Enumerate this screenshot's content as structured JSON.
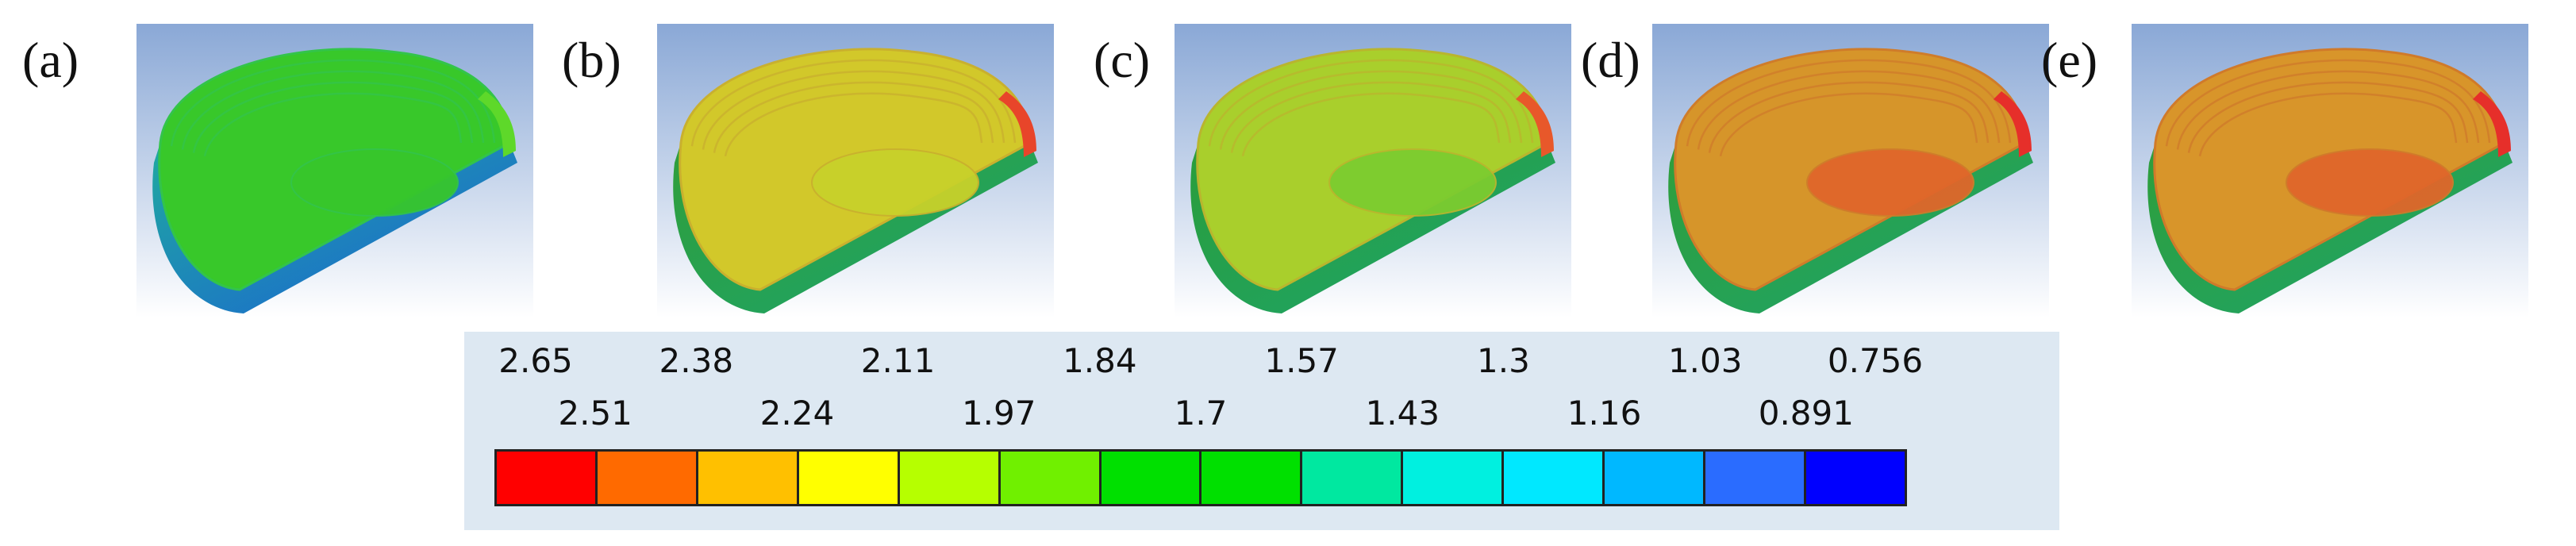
{
  "panels": [
    {
      "label": "(a)",
      "colors": {
        "top": "#38c82a",
        "rim": "#33c44a",
        "wall": "#1fa9a0",
        "wall_edge": "#1b5fd6",
        "center": "#37c62c",
        "edge_hot": "#5ed82a"
      }
    },
    {
      "label": "(b)",
      "colors": {
        "top": "#d2c82a",
        "rim": "#c9b02e",
        "wall": "#2f9e3a",
        "wall_edge": "#1da56c",
        "center": "#c8d12a",
        "edge_hot": "#e8452a"
      }
    },
    {
      "label": "(c)",
      "colors": {
        "top": "#a9cf2c",
        "rim": "#b9b52e",
        "wall": "#2a9d3a",
        "wall_edge": "#1da56c",
        "center": "#7ccc30",
        "edge_hot": "#e8582a"
      }
    },
    {
      "label": "(d)",
      "colors": {
        "top": "#d6952a",
        "rim": "#cf7c2a",
        "wall": "#2f9e3a",
        "wall_edge": "#1da56c",
        "center": "#e0662a",
        "edge_hot": "#e62f2a"
      }
    },
    {
      "label": "(e)",
      "colors": {
        "top": "#d8952a",
        "rim": "#d07a2a",
        "wall": "#2f9e3a",
        "wall_edge": "#1da56c",
        "center": "#e0662a",
        "edge_hot": "#e62f2a"
      }
    }
  ],
  "legend": {
    "top_ticks": [
      "2.65",
      "2.38",
      "2.11",
      "1.84",
      "1.57",
      "1.3",
      "1.03",
      "0.756"
    ],
    "bottom_ticks": [
      "2.51",
      "2.24",
      "1.97",
      "1.7",
      "1.43",
      "1.16",
      "0.891"
    ],
    "colors": [
      "#ff0000",
      "#ff6a00",
      "#ffc000",
      "#ffff00",
      "#b6ff00",
      "#70f000",
      "#00e000",
      "#00e000",
      "#00e8a0",
      "#00f0e0",
      "#00e8ff",
      "#00b8ff",
      "#2a6cff",
      "#0000ff"
    ]
  }
}
